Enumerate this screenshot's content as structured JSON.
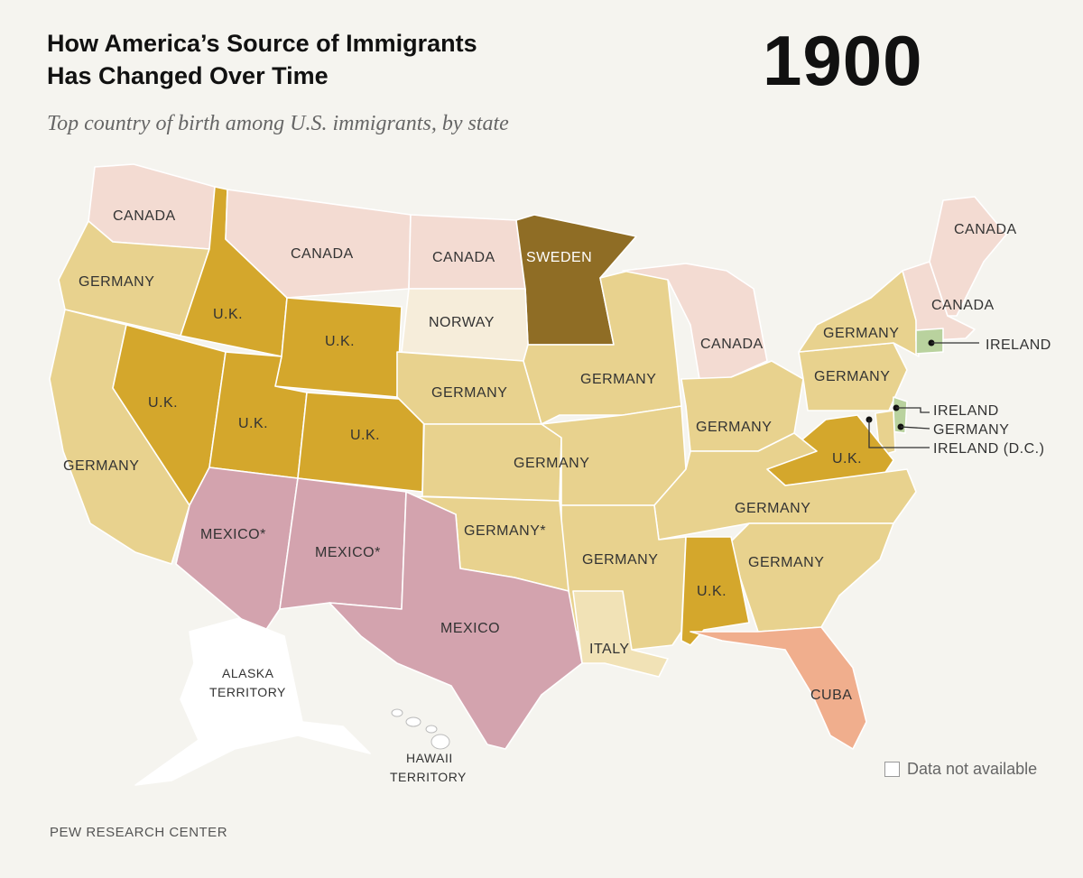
{
  "header": {
    "title_line1": "How America’s Source of Immigrants",
    "title_line2": "Has Changed Over Time",
    "year": "1900",
    "subtitle": "Top country of birth among U.S. immigrants, by state"
  },
  "colors": {
    "canada": "#f3dbd2",
    "germany": "#e8d28e",
    "uk": "#d4a72c",
    "sweden": "#8f6d25",
    "norway": "#f6edda",
    "mexico": "#d3a3ae",
    "italy": "#f1e2b6",
    "cuba": "#f0ae8d",
    "ireland": "#b9d29e",
    "not_available": "#ffffff"
  },
  "map": {
    "states": {
      "wa": "CANADA",
      "mt": "CANADA",
      "nd": "CANADA",
      "mn": "SWEDEN",
      "or": "GERMANY",
      "id": "U.K.",
      "sd": "NORWAY",
      "wy": "U.K.",
      "mi": "CANADA",
      "me": "CANADA",
      "ne_states": "CANADA",
      "ny": "GERMANY",
      "ct": "IRELAND",
      "ne": "GERMANY",
      "ia_wi": "GERMANY",
      "pa": "GERMANY",
      "nv": "U.K.",
      "ut": "U.K.",
      "co": "U.K.",
      "ca": "GERMANY",
      "ks": "GERMANY",
      "oh_in": "GERMANY",
      "va": "U.K.",
      "nj": "IRELAND",
      "de": "GERMANY",
      "dc": "IRELAND (D.C.)",
      "ky_tn": "GERMANY",
      "az": "MEXICO*",
      "nm": "MEXICO*",
      "ok": "GERMANY*",
      "ar_ms": "GERMANY",
      "nc_sc_ga": "GERMANY",
      "al": "U.K.",
      "tx": "MEXICO",
      "la": "ITALY",
      "fl": "CUBA",
      "ak_line1": "ALASKA",
      "ak_line2": "TERRITORY",
      "hi_line1": "HAWAII",
      "hi_line2": "TERRITORY"
    }
  },
  "legend": {
    "label": "Data not available"
  },
  "source": "PEW RESEARCH CENTER"
}
